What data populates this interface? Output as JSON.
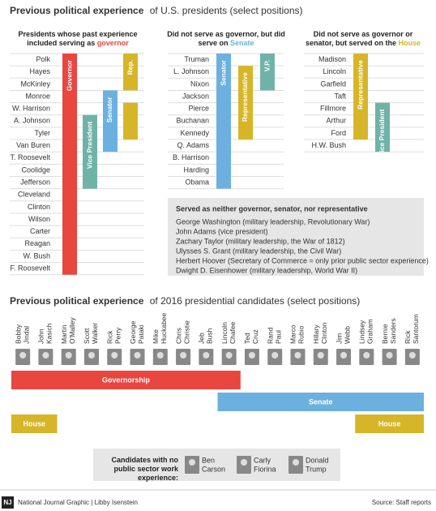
{
  "section1": {
    "title_bold": "Previous political experience",
    "title_rest": "of U.S. presidents (select positions)",
    "panels": [
      {
        "heading": "Presidents whose past experience included serving as",
        "heading_highlight": "governor",
        "highlight_color": "#e8463f",
        "names": [
          "Polk",
          "Hayes",
          "McKinley",
          "Monroe",
          "W. Harrison",
          "A. Johnson",
          "Tyler",
          "Van Buren",
          "T. Roosevelt",
          "Coolidge",
          "Jefferson",
          "Cleveland",
          "Clinton",
          "Wilson",
          "Carter",
          "Reagan",
          "W. Bush",
          "F. Roosevelt"
        ],
        "bars": [
          {
            "label": "Governor",
            "color": "#e8463f",
            "rows": [
              0,
              17
            ]
          },
          {
            "label": "Vice President",
            "color": "#6fb3a8",
            "rows": [
              5,
              10
            ]
          },
          {
            "label": "Senator",
            "color": "#6cb0e0",
            "rows": [
              3,
              7
            ]
          },
          {
            "label": "Rep.",
            "color": "#d6b628",
            "rows": [
              0,
              2
            ]
          },
          {
            "color": "#d6b628",
            "rows": [
              4,
              6
            ]
          }
        ]
      },
      {
        "heading": "Did not serve as governor, but did serve on",
        "heading_highlight": "Senate",
        "highlight_color": "#6cb0e0",
        "names": [
          "Truman",
          "L. Johnson",
          "Nixon",
          "Jackson",
          "Pierce",
          "Buchanan",
          "Kennedy",
          "Q. Adams",
          "B. Harrison",
          "Harding",
          "Obama"
        ],
        "bars": [
          {
            "label": "Senator",
            "color": "#6cb0e0",
            "rows": [
              0,
              10
            ]
          },
          {
            "label": "Representative",
            "color": "#d6b628",
            "rows": [
              1,
              6
            ]
          },
          {
            "label": "V.P.",
            "color": "#6fb3a8",
            "rows": [
              0,
              2
            ]
          }
        ]
      },
      {
        "heading": "Did not serve as governor or senator, but served on the",
        "heading_highlight": "House",
        "highlight_color": "#d6b628",
        "names": [
          "Madison",
          "Lincoln",
          "Garfield",
          "Taft",
          "Fillmore",
          "Arthur",
          "Ford",
          "H.W. Bush"
        ],
        "bars": [
          {
            "label": "Representative",
            "color": "#d6b628",
            "rows": [
              0,
              6
            ]
          },
          {
            "label": "Vice President",
            "color": "#6fb3a8",
            "rows": [
              4,
              7
            ]
          }
        ]
      }
    ],
    "neither": {
      "title": "Served as neither governor, senator, nor representative",
      "items": [
        "George Washington (military leadership, Revolutionary War)",
        "John Adams (vice president)",
        "Zachary Taylor (military leadership, the War of 1812)",
        "Ulysses S. Grant (military leadership, the Civil War)",
        "Herbert Hoover (Secretary of Commerce = only prior public sector experience)",
        "Dwight D. Eisenhower (military leadership, World War II)"
      ]
    }
  },
  "section2": {
    "title_bold": "Previous political experience",
    "title_rest": "of 2016 presidential candidates (select positions)",
    "candidates": [
      {
        "first": "Bobby",
        "last": "Jindal"
      },
      {
        "first": "John",
        "last": "Kasich"
      },
      {
        "first": "Martin",
        "last": "O'Malley"
      },
      {
        "first": "Scott",
        "last": "Walker"
      },
      {
        "first": "Rick",
        "last": "Perry"
      },
      {
        "first": "George",
        "last": "Pataki"
      },
      {
        "first": "Mike",
        "last": "Huckabee"
      },
      {
        "first": "Chris",
        "last": "Christie"
      },
      {
        "first": "Jeb",
        "last": "Bush"
      },
      {
        "first": "Lincoln",
        "last": "Chafee"
      },
      {
        "first": "Ted",
        "last": "Cruz"
      },
      {
        "first": "Rand",
        "last": "Paul"
      },
      {
        "first": "Marco",
        "last": "Rubio"
      },
      {
        "first": "Hillary",
        "last": "Clinton"
      },
      {
        "first": "Jim",
        "last": "Webb"
      },
      {
        "first": "Lindsey",
        "last": "Graham"
      },
      {
        "first": "Bernie",
        "last": "Sanders"
      },
      {
        "first": "Rick",
        "last": "Santorum"
      }
    ],
    "bars": [
      {
        "label": "Governorship",
        "color": "#e8463f",
        "columns": [
          0,
          9
        ]
      },
      {
        "label": "Senate",
        "color": "#6cb0e0",
        "columns": [
          9,
          17
        ]
      },
      {
        "label": "House",
        "color": "#d6b628",
        "columns": [
          0,
          1
        ]
      },
      {
        "label": "House",
        "color": "#d6b628",
        "columns": [
          15,
          17
        ]
      }
    ],
    "no_experience": {
      "label": "Candidates with no public sector work experience:",
      "people": [
        {
          "first": "Ben",
          "last": "Carson"
        },
        {
          "first": "Carly",
          "last": "Fiorina"
        },
        {
          "first": "Donald",
          "last": "Trump"
        }
      ]
    }
  },
  "footer": {
    "logo": "NJ",
    "credit": "National Journal Graphic | Libby Isenstein",
    "source": "Source: Staff reports"
  }
}
